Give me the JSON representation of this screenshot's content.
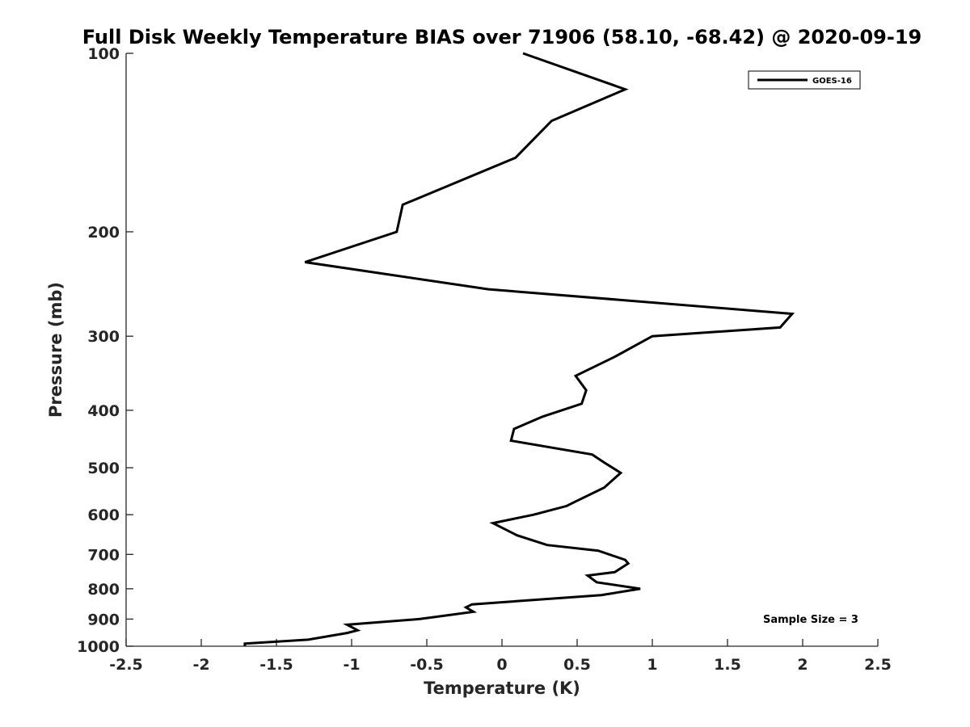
{
  "chart_data": {
    "type": "line",
    "title": "Full Disk Weekly Temperature BIAS over 71906 (58.10, -68.42) @ 2020-09-19",
    "xlabel": "Temperature (K)",
    "ylabel": "Pressure (mb)",
    "xlim": [
      -2.5,
      2.5
    ],
    "ylim": [
      1000,
      100
    ],
    "y_scale": "log",
    "x_ticks": [
      "-2.5",
      "-2",
      "-1.5",
      "-1",
      "-0.5",
      "0",
      "0.5",
      "1",
      "1.5",
      "2",
      "2.5"
    ],
    "y_ticks": [
      "100",
      "200",
      "300",
      "400",
      "500",
      "600",
      "700",
      "800",
      "900",
      "1000"
    ],
    "grid": false,
    "legend": {
      "position": "top-right",
      "entries": [
        "GOES-16"
      ]
    },
    "annotation": "Sample Size = 3",
    "series": [
      {
        "name": "GOES-16",
        "color": "#000000",
        "x": [
          0.14,
          0.82,
          0.33,
          0.09,
          -0.66,
          -0.7,
          -1.31,
          -0.09,
          1.93,
          1.85,
          1.0,
          0.75,
          0.49,
          0.56,
          0.53,
          0.27,
          0.08,
          0.06,
          0.6,
          0.68,
          0.79,
          0.68,
          0.49,
          0.43,
          0.21,
          -0.06,
          0.1,
          0.3,
          0.64,
          0.82,
          0.84,
          0.75,
          0.57,
          0.63,
          0.92,
          0.66,
          -0.2,
          -0.24,
          -0.19,
          -0.55,
          -1.03,
          -0.96,
          -1.03,
          -1.29,
          -1.71,
          -1.71
        ],
        "y": [
          100,
          115,
          130,
          150,
          180,
          200,
          225,
          250,
          275,
          290,
          300,
          325,
          350,
          370,
          390,
          410,
          430,
          450,
          475,
          490,
          510,
          540,
          570,
          580,
          600,
          620,
          650,
          675,
          690,
          715,
          725,
          750,
          760,
          780,
          800,
          820,
          850,
          860,
          875,
          900,
          920,
          940,
          950,
          975,
          990,
          1000
        ]
      }
    ]
  }
}
